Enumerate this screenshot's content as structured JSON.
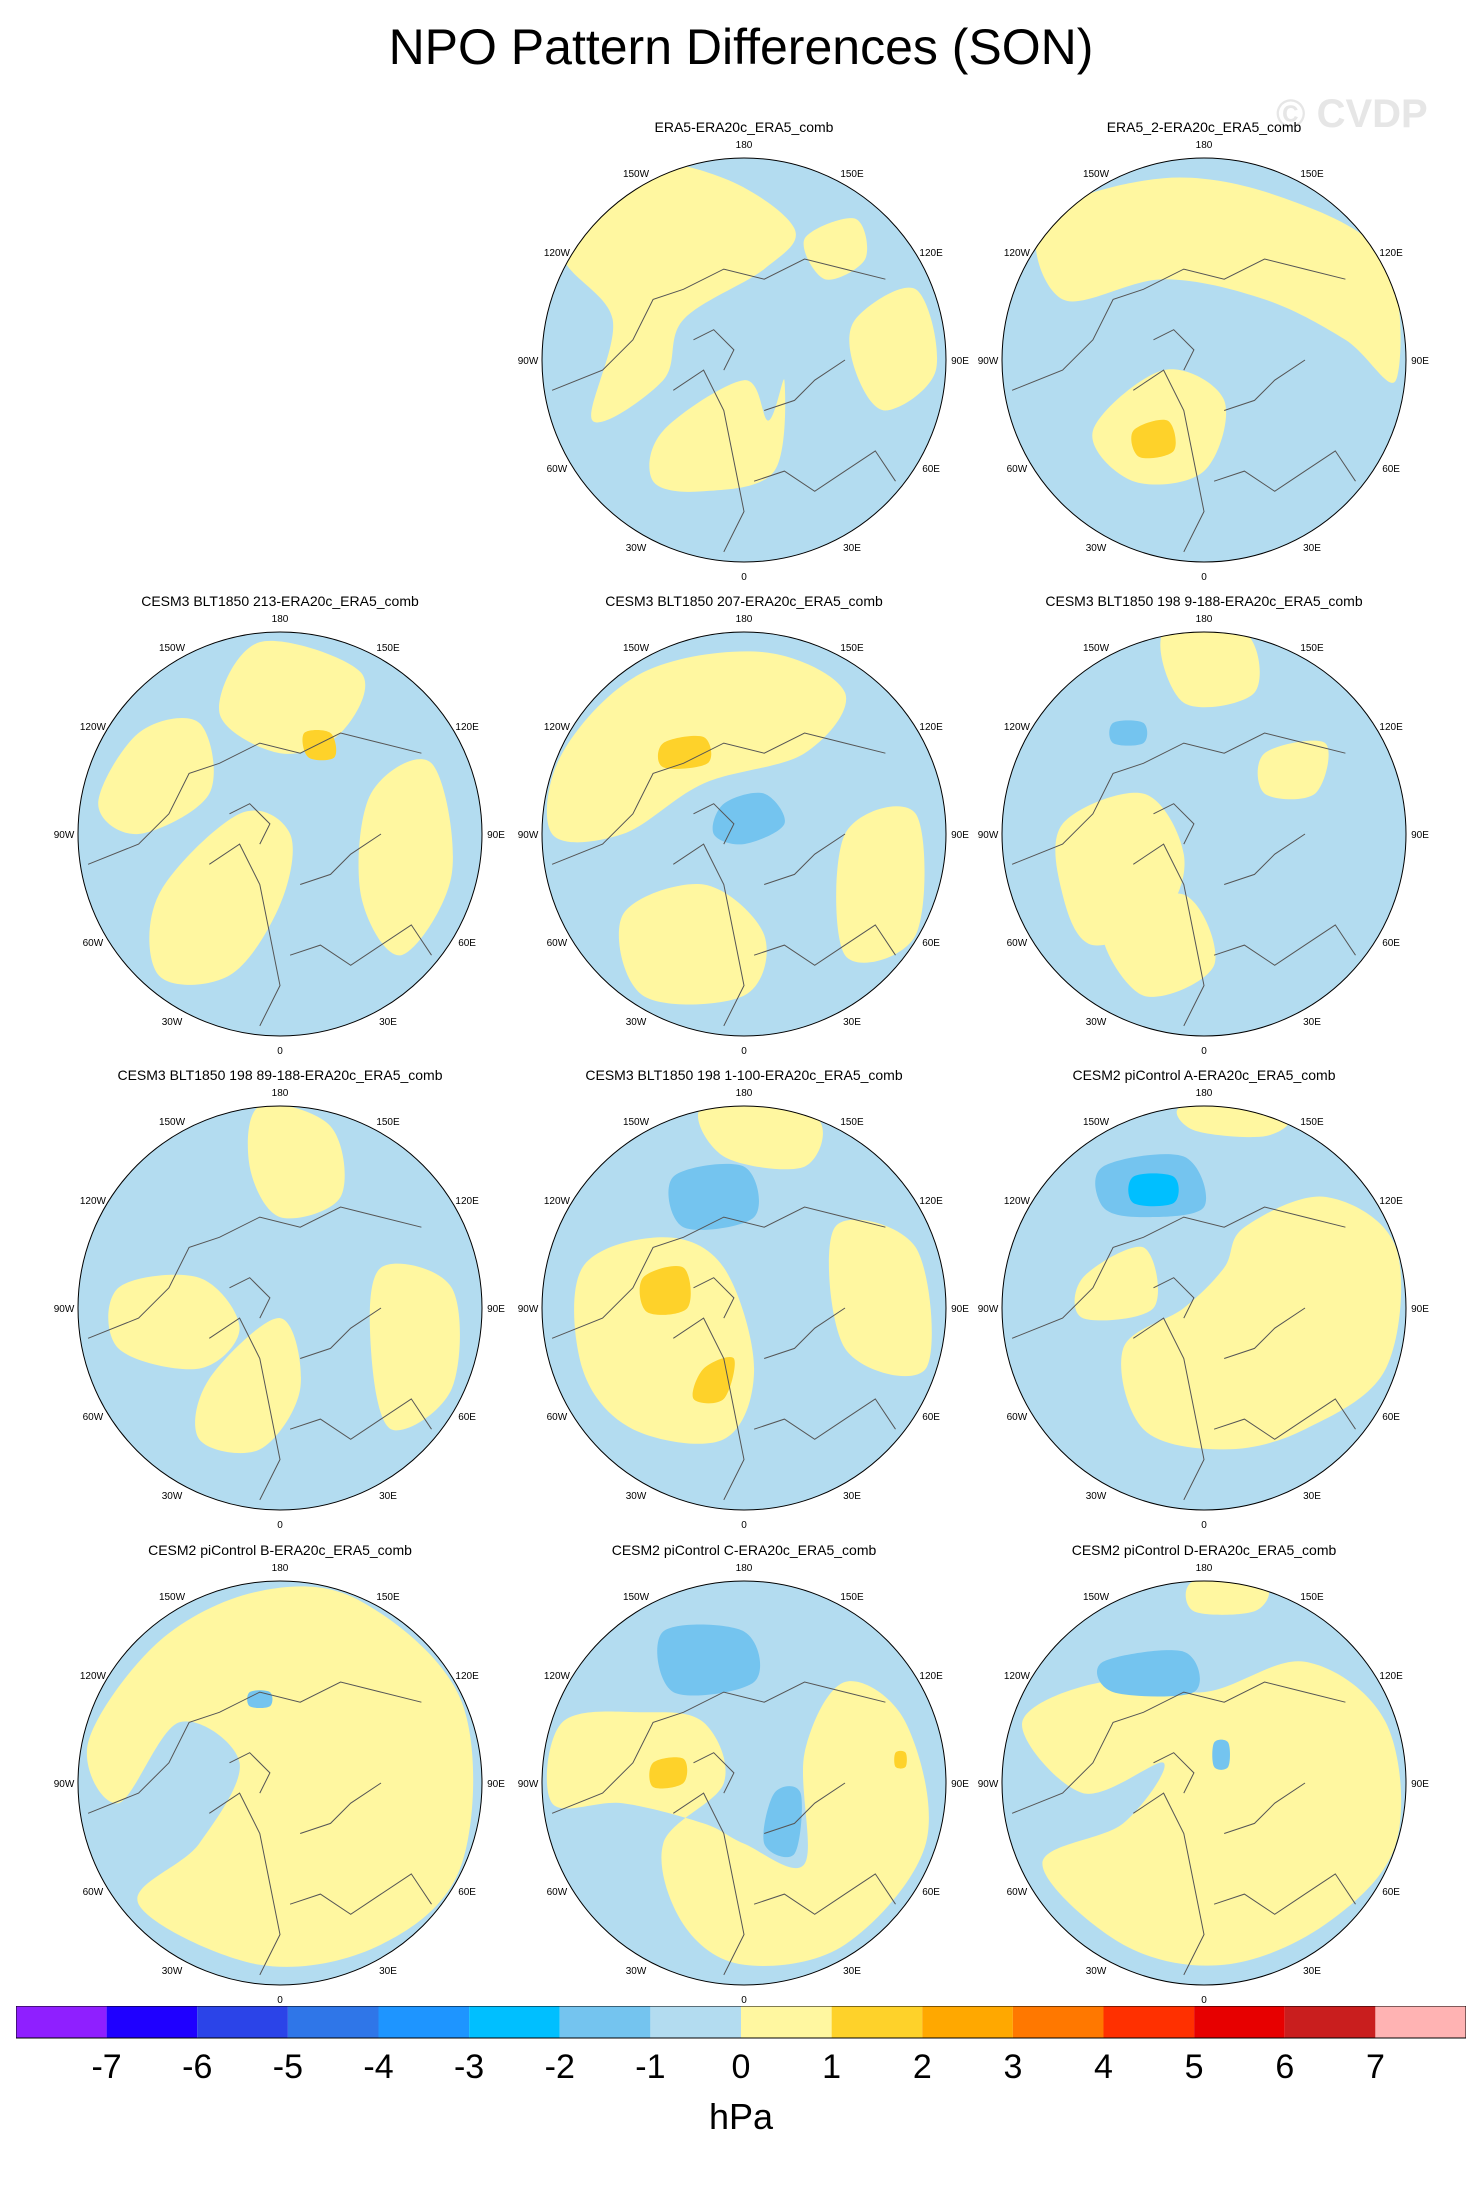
{
  "title": "NPO Pattern Differences (SON)",
  "watermark": "© CVDP",
  "unit": "hPa",
  "colors": {
    "ocean_neg_small": "#b3dcf0",
    "pos_small": "#fff7a0",
    "pos_1": "#fed22a",
    "neg_1": "#74c4ef",
    "neg_2": "#00bfff",
    "coast": "#555555"
  },
  "lon_labels": [
    "180",
    "150E",
    "120E",
    "90E",
    "60E",
    "30E",
    "0",
    "30W",
    "60W",
    "90W",
    "120W",
    "150W"
  ],
  "panels": [
    {
      "title": "ERA5-ERA20c_ERA5_comb"
    },
    {
      "title": "ERA5_2-ERA20c_ERA5_comb"
    },
    {
      "title": "CESM3 BLT1850 213-ERA20c_ERA5_comb"
    },
    {
      "title": "CESM3 BLT1850 207-ERA20c_ERA5_comb"
    },
    {
      "title": "CESM3 BLT1850 198 9-188-ERA20c_ERA5_comb"
    },
    {
      "title": "CESM3 BLT1850 198 89-188-ERA20c_ERA5_comb"
    },
    {
      "title": "CESM3 BLT1850 198 1-100-ERA20c_ERA5_comb"
    },
    {
      "title": "CESM2 piControl A-ERA20c_ERA5_comb"
    },
    {
      "title": "CESM2 piControl B-ERA20c_ERA5_comb"
    },
    {
      "title": "CESM2 piControl C-ERA20c_ERA5_comb"
    },
    {
      "title": "CESM2 piControl D-ERA20c_ERA5_comb"
    }
  ],
  "colorbar": {
    "colors": [
      "#8f1fff",
      "#1f00ff",
      "#2b44e8",
      "#2f76e8",
      "#1e95ff",
      "#00bfff",
      "#74c4ef",
      "#b3dcf0",
      "#fff7a0",
      "#fed22a",
      "#ffa800",
      "#ff7800",
      "#ff3000",
      "#e70000",
      "#c91e1e",
      "#ffb3b3"
    ],
    "labels": [
      "-7",
      "-6",
      "-5",
      "-4",
      "-3",
      "-2",
      "-1",
      "0",
      "1",
      "2",
      "3",
      "4",
      "5",
      "6",
      "7"
    ]
  }
}
